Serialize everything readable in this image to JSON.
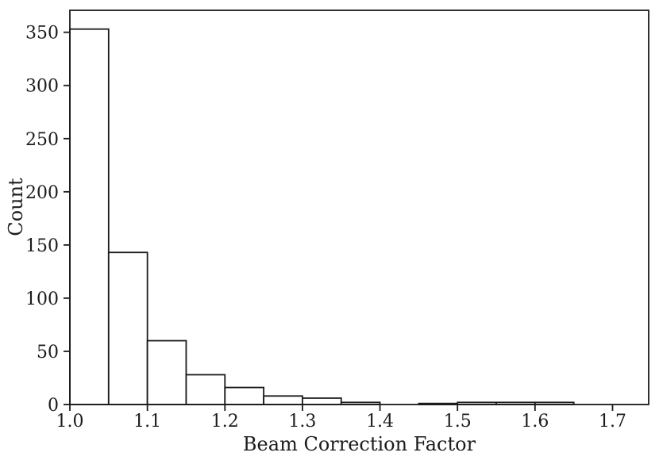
{
  "chart_data": {
    "type": "bar",
    "subtype": "histogram",
    "title": "",
    "xlabel": "Beam Correction Factor",
    "ylabel": "Count",
    "bin_start": 1.0,
    "bin_width": 0.05,
    "bin_edges": [
      1.0,
      1.05,
      1.1,
      1.15,
      1.2,
      1.25,
      1.3,
      1.35,
      1.4,
      1.45,
      1.5,
      1.55,
      1.6,
      1.65
    ],
    "values": [
      353,
      143,
      60,
      28,
      16,
      8,
      6,
      2,
      0,
      1,
      2,
      2,
      2
    ],
    "x_ticks": [
      1.0,
      1.1,
      1.2,
      1.3,
      1.4,
      1.5,
      1.6,
      1.7
    ],
    "x_tick_labels": [
      "1.0",
      "1.1",
      "1.2",
      "1.3",
      "1.4",
      "1.5",
      "1.6",
      "1.7"
    ],
    "y_ticks": [
      0,
      50,
      100,
      150,
      200,
      250,
      300,
      350
    ],
    "y_tick_labels": [
      "0",
      "50",
      "100",
      "150",
      "200",
      "250",
      "300",
      "350"
    ],
    "xlim": [
      1.0,
      1.7466
    ],
    "ylim": [
      0,
      370.65
    ],
    "grid": false,
    "legend": null,
    "bar_fill": "#ffffff",
    "bar_edge": "#1a1a1a",
    "axis_color": "#1a1a1a",
    "text_color": "#1c1c1c",
    "background": "#ffffff"
  }
}
